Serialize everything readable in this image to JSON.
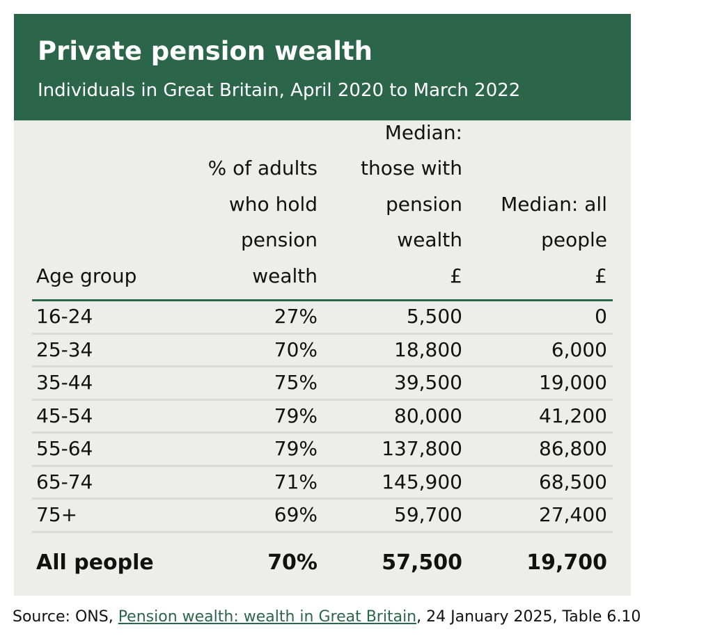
{
  "title": "Private pension wealth",
  "subtitle": "Individuals in Great Britain, April 2020 to March 2022",
  "colors": {
    "header_bg": "#2b664a",
    "card_bg": "#ededeb",
    "link": "#2b664a"
  },
  "chart_data": {
    "type": "table",
    "title": "Private pension wealth",
    "subtitle": "Individuals in Great Britain, April 2020 to March 2022",
    "columns": [
      {
        "lines": [
          "Age group"
        ]
      },
      {
        "lines": [
          "% of adults",
          "who hold",
          "pension",
          "wealth"
        ]
      },
      {
        "lines": [
          "Median:",
          "those with",
          "pension",
          "wealth",
          "£"
        ]
      },
      {
        "lines": [
          "Median: all",
          "people",
          "£"
        ]
      }
    ],
    "rows": [
      [
        "16-24",
        "27%",
        "5,500",
        "0"
      ],
      [
        "25-34",
        "70%",
        "18,800",
        "6,000"
      ],
      [
        "35-44",
        "75%",
        "39,500",
        "19,000"
      ],
      [
        "45-54",
        "79%",
        "80,000",
        "41,200"
      ],
      [
        "55-64",
        "79%",
        "137,800",
        "86,800"
      ],
      [
        "65-74",
        "71%",
        "145,900",
        "68,500"
      ],
      [
        "75+",
        "69%",
        "59,700",
        "27,400"
      ]
    ],
    "total": [
      "All people",
      "70%",
      "57,500",
      "19,700"
    ]
  },
  "source": {
    "prefix": "Source: ONS, ",
    "link_text": "Pension wealth: wealth in Great Britain",
    "suffix": ", 24 January 2025, Table 6.10"
  }
}
